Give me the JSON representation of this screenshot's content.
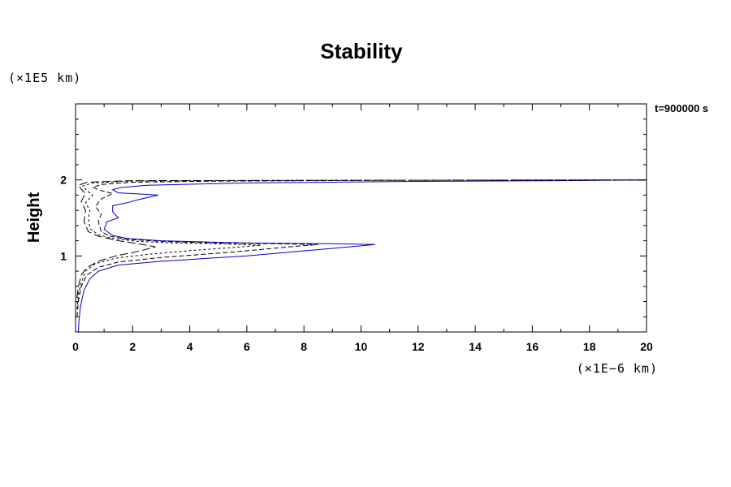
{
  "chart_data": {
    "type": "line",
    "title": "Stability",
    "ylabel": "Height",
    "xlabel": "",
    "x_scale_label": "(×1E−6 km)",
    "y_scale_label": "(×1E5 km)",
    "annotation": "t=900000 s",
    "xlim": [
      0,
      20
    ],
    "ylim": [
      0,
      3
    ],
    "x_ticks": [
      0,
      2,
      4,
      6,
      8,
      10,
      12,
      14,
      16,
      18,
      20
    ],
    "x_tick_labels": [
      "0",
      "2",
      "4",
      "6",
      "8",
      "10",
      "12",
      "14",
      "16",
      "18",
      "20"
    ],
    "y_ticks": [
      1,
      2
    ],
    "y_tick_labels": [
      "1",
      "2"
    ],
    "grid": false,
    "colors": {
      "blue": "#0000cc",
      "black": "#000000"
    },
    "series": [
      {
        "style": "solid",
        "color": "#0000cc",
        "points": [
          [
            0.1,
            0.0
          ],
          [
            0.12,
            0.15
          ],
          [
            0.18,
            0.35
          ],
          [
            0.3,
            0.55
          ],
          [
            0.5,
            0.7
          ],
          [
            0.8,
            0.8
          ],
          [
            1.5,
            0.88
          ],
          [
            3.0,
            0.93
          ],
          [
            6.0,
            1.0
          ],
          [
            9.0,
            1.1
          ],
          [
            10.5,
            1.15
          ],
          [
            9.0,
            1.16
          ],
          [
            6.0,
            1.17
          ],
          [
            3.0,
            1.2
          ],
          [
            1.8,
            1.23
          ],
          [
            1.3,
            1.27
          ],
          [
            1.0,
            1.35
          ],
          [
            1.1,
            1.45
          ],
          [
            1.5,
            1.5
          ],
          [
            1.3,
            1.58
          ],
          [
            1.3,
            1.66
          ],
          [
            1.8,
            1.7
          ],
          [
            2.2,
            1.74
          ],
          [
            2.9,
            1.8
          ],
          [
            2.0,
            1.82
          ],
          [
            1.5,
            1.83
          ],
          [
            1.3,
            1.87
          ],
          [
            1.6,
            1.9
          ],
          [
            2.5,
            1.93
          ],
          [
            6.0,
            1.96
          ],
          [
            12.0,
            1.98
          ],
          [
            17.0,
            1.99
          ],
          [
            20.0,
            2.0
          ]
        ]
      },
      {
        "style": "dashed",
        "color": "#000000",
        "points": [
          [
            0.05,
            0.2
          ],
          [
            0.1,
            0.4
          ],
          [
            0.2,
            0.6
          ],
          [
            0.4,
            0.75
          ],
          [
            0.8,
            0.85
          ],
          [
            1.5,
            0.92
          ],
          [
            3.0,
            0.98
          ],
          [
            5.5,
            1.05
          ],
          [
            7.5,
            1.12
          ],
          [
            8.5,
            1.15
          ],
          [
            7.0,
            1.16
          ],
          [
            5.0,
            1.17
          ],
          [
            3.0,
            1.19
          ],
          [
            1.8,
            1.22
          ],
          [
            1.2,
            1.26
          ],
          [
            0.9,
            1.32
          ],
          [
            0.8,
            1.45
          ],
          [
            0.9,
            1.55
          ],
          [
            0.7,
            1.65
          ],
          [
            0.9,
            1.75
          ],
          [
            1.3,
            1.82
          ],
          [
            0.9,
            1.86
          ],
          [
            0.6,
            1.9
          ],
          [
            0.9,
            1.94
          ],
          [
            2.0,
            1.97
          ],
          [
            5.0,
            1.985
          ],
          [
            12.0,
            1.995
          ],
          [
            20.0,
            2.0
          ]
        ]
      },
      {
        "style": "short-dashed",
        "color": "#000000",
        "points": [
          [
            0.05,
            0.3
          ],
          [
            0.1,
            0.5
          ],
          [
            0.2,
            0.65
          ],
          [
            0.35,
            0.8
          ],
          [
            0.7,
            0.9
          ],
          [
            1.4,
            0.97
          ],
          [
            2.5,
            1.02
          ],
          [
            4.0,
            1.07
          ],
          [
            5.5,
            1.11
          ],
          [
            6.5,
            1.14
          ],
          [
            5.0,
            1.16
          ],
          [
            3.5,
            1.17
          ],
          [
            2.2,
            1.19
          ],
          [
            1.3,
            1.23
          ],
          [
            0.8,
            1.28
          ],
          [
            0.5,
            1.36
          ],
          [
            0.45,
            1.5
          ],
          [
            0.5,
            1.6
          ],
          [
            0.35,
            1.7
          ],
          [
            0.6,
            1.8
          ],
          [
            0.4,
            1.86
          ],
          [
            0.25,
            1.92
          ],
          [
            0.6,
            1.96
          ],
          [
            2.0,
            1.985
          ],
          [
            8.0,
            1.995
          ],
          [
            20.0,
            2.0
          ]
        ]
      },
      {
        "style": "long-dashed",
        "color": "#000000",
        "points": [
          [
            0.05,
            0.45
          ],
          [
            0.1,
            0.6
          ],
          [
            0.2,
            0.75
          ],
          [
            0.4,
            0.85
          ],
          [
            0.8,
            0.93
          ],
          [
            1.4,
            1.0
          ],
          [
            2.2,
            1.06
          ],
          [
            2.8,
            1.12
          ],
          [
            2.2,
            1.16
          ],
          [
            1.5,
            1.2
          ],
          [
            0.8,
            1.26
          ],
          [
            0.45,
            1.32
          ],
          [
            0.3,
            1.45
          ],
          [
            0.35,
            1.6
          ],
          [
            0.2,
            1.72
          ],
          [
            0.35,
            1.82
          ],
          [
            0.2,
            1.88
          ],
          [
            0.1,
            1.93
          ],
          [
            0.4,
            1.97
          ],
          [
            2.0,
            1.99
          ],
          [
            20.0,
            2.0
          ]
        ]
      }
    ]
  }
}
